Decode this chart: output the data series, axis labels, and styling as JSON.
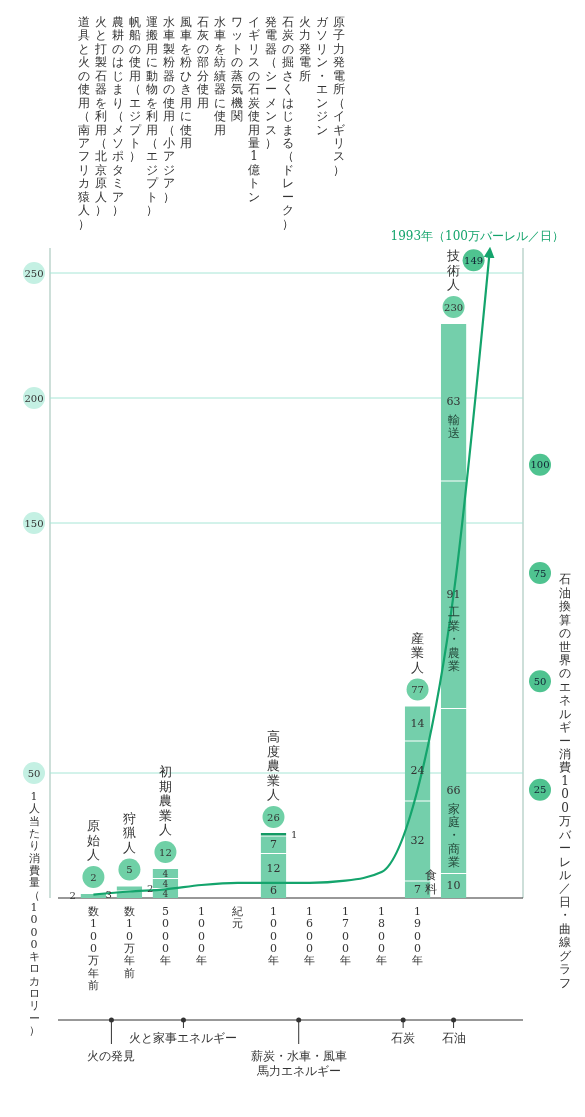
{
  "chart_data": {
    "type": "bar",
    "stacked": true,
    "ylabel": "1人当たり消費量（1000キロカロリー）",
    "y2label": "石油換算の世界のエネルギー消費100万バーレル／日・曲線グラフ",
    "categories": [
      "数100万年前",
      "数10万年前",
      "5000年",
      "1000年",
      "紀元",
      "1000年",
      "1600年",
      "1700年",
      "1800年",
      "1900年",
      null,
      null
    ],
    "series": [
      {
        "name": "食料",
        "color": "#74cfab",
        "values": [
          2,
          3,
          4,
          null,
          null,
          6,
          null,
          null,
          null,
          7,
          10,
          null
        ]
      },
      {
        "name": "家庭・商業",
        "color": "#74cfab",
        "values": [
          null,
          2,
          4,
          null,
          null,
          12,
          null,
          null,
          null,
          32,
          66,
          null
        ]
      },
      {
        "name": "工業・農業",
        "color": "#74cfab",
        "values": [
          null,
          null,
          4,
          null,
          null,
          7,
          null,
          null,
          null,
          24,
          91,
          null
        ]
      },
      {
        "name": "輸送",
        "color": "#74cfab",
        "colors": [
          null,
          null,
          null,
          null,
          null,
          "#139a64",
          null,
          null,
          null,
          null,
          null,
          null
        ],
        "values": [
          null,
          null,
          null,
          null,
          null,
          1,
          null,
          null,
          null,
          14,
          63,
          null
        ]
      },
      {
        "type": "line",
        "axis": "y2",
        "color": "#14a46c",
        "values": [
          0.8,
          1.5,
          2,
          3,
          3.5,
          3.5,
          3.5,
          4,
          6,
          25,
          70,
          149
        ],
        "value_labels": [
          null,
          null,
          null,
          null,
          null,
          null,
          null,
          null,
          null,
          null,
          null,
          "149"
        ]
      }
    ],
    "totals": [
      "2",
      "5",
      "12",
      null,
      null,
      "26",
      null,
      null,
      null,
      "77",
      "230",
      null
    ],
    "data_labels": true,
    "ylim": [
      0,
      260
    ],
    "yticks": [
      50,
      150,
      200,
      250
    ],
    "y2lim": [
      0,
      150
    ],
    "y2ticks": [
      25,
      50,
      75,
      100
    ],
    "grid": "y",
    "annotations": [
      "原始人",
      "狩猟人",
      "初期農業人",
      "高度農業人",
      "産業人",
      "技術人",
      "1993年（100万バーレル／日）",
      "道具と火の使用（南アフリカ猿人）",
      "火と打製石器を利用（北京原人）",
      "農耕のはじまり（メソポタミア）",
      "帆船の使用（エジプト）",
      "運搬用に動物を利用（エジプト）",
      "水車製粉器の使用（小アジア）",
      "風車を粉ひき用に使用",
      "石灰の部分使用",
      "水車を紡績器に使用",
      "ワットの蒸気機関",
      "イギリスの石炭使用量1億トン",
      "発電器（シーメンス）",
      "石炭の掘さくはじまる（ドレーク）",
      "火力発電所",
      "ガソリン・エンジン",
      "原子力発電所（イギリス）",
      "火の発見",
      "火と家事エネルギー",
      "薪炭・水車・風車",
      "馬力エネルギー",
      "石炭",
      "石油"
    ]
  }
}
